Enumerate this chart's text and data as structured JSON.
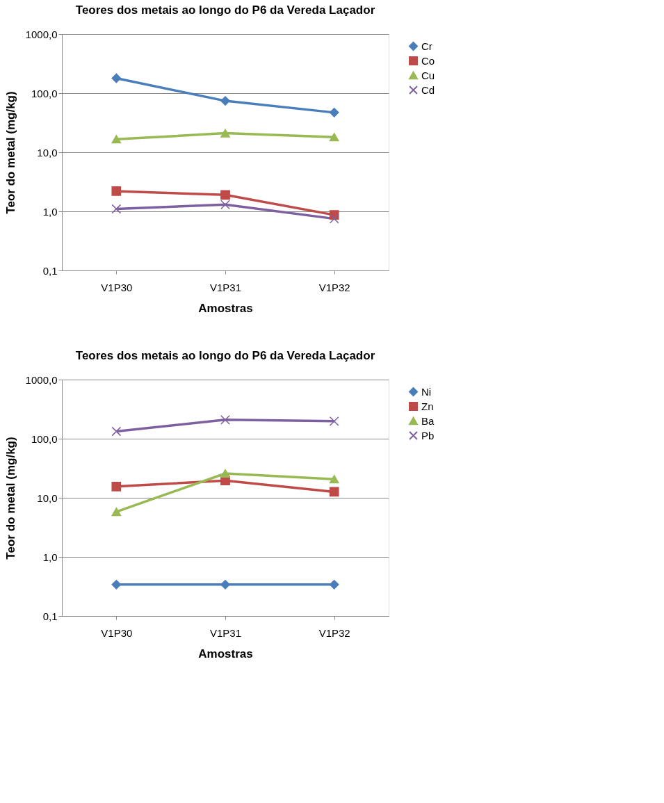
{
  "chart_data": [
    {
      "type": "line",
      "title": "Teores dos metais ao longo do P6 da Vereda Laçador",
      "xlabel": "Amostras",
      "ylabel": "Teor do metal (mg/kg)",
      "categories": [
        "V1P30",
        "V1P31",
        "V1P32"
      ],
      "log": true,
      "ylim": [
        0.1,
        1000
      ],
      "yticks": [
        {
          "value": 0.1,
          "label": "0,1"
        },
        {
          "value": 1,
          "label": "1,0"
        },
        {
          "value": 10,
          "label": "10,0"
        },
        {
          "value": 100,
          "label": "100,0"
        },
        {
          "value": 1000,
          "label": "1000,0"
        }
      ],
      "grid": "y",
      "legend": "right",
      "series": [
        {
          "name": "Cr",
          "color": "#4a7ebb",
          "marker": "diamond",
          "values": [
            179,
            74,
            47
          ]
        },
        {
          "name": "Co",
          "color": "#be4b48",
          "marker": "square",
          "values": [
            2.2,
            1.9,
            0.87
          ]
        },
        {
          "name": "Cu",
          "color": "#98b954",
          "marker": "triangle",
          "values": [
            16.6,
            21,
            18
          ]
        },
        {
          "name": "Cd",
          "color": "#7d60a0",
          "marker": "cross",
          "values": [
            1.1,
            1.3,
            0.75
          ]
        }
      ]
    },
    {
      "type": "line",
      "title": "Teores dos metais ao longo do P6 da Vereda Laçador",
      "xlabel": "Amostras",
      "ylabel": "Teor do metal (mg/kg)",
      "categories": [
        "V1P30",
        "V1P31",
        "V1P32"
      ],
      "log": true,
      "ylim": [
        0.1,
        1000
      ],
      "yticks": [
        {
          "value": 0.1,
          "label": "0,1"
        },
        {
          "value": 1,
          "label": "1,0"
        },
        {
          "value": 10,
          "label": "10,0"
        },
        {
          "value": 100,
          "label": "100,0"
        },
        {
          "value": 1000,
          "label": "1000,0"
        }
      ],
      "grid": "y",
      "legend": "right",
      "series": [
        {
          "name": "Ni",
          "color": "#4a7ebb",
          "marker": "diamond",
          "values": [
            0.34,
            0.34,
            0.34
          ]
        },
        {
          "name": "Zn",
          "color": "#be4b48",
          "marker": "square",
          "values": [
            15.5,
            19.6,
            12.6
          ]
        },
        {
          "name": "Ba",
          "color": "#98b954",
          "marker": "triangle",
          "values": [
            5.8,
            25.8,
            20.7
          ]
        },
        {
          "name": "Pb",
          "color": "#7d60a0",
          "marker": "cross",
          "values": [
            133,
            209,
            198
          ]
        }
      ]
    }
  ]
}
